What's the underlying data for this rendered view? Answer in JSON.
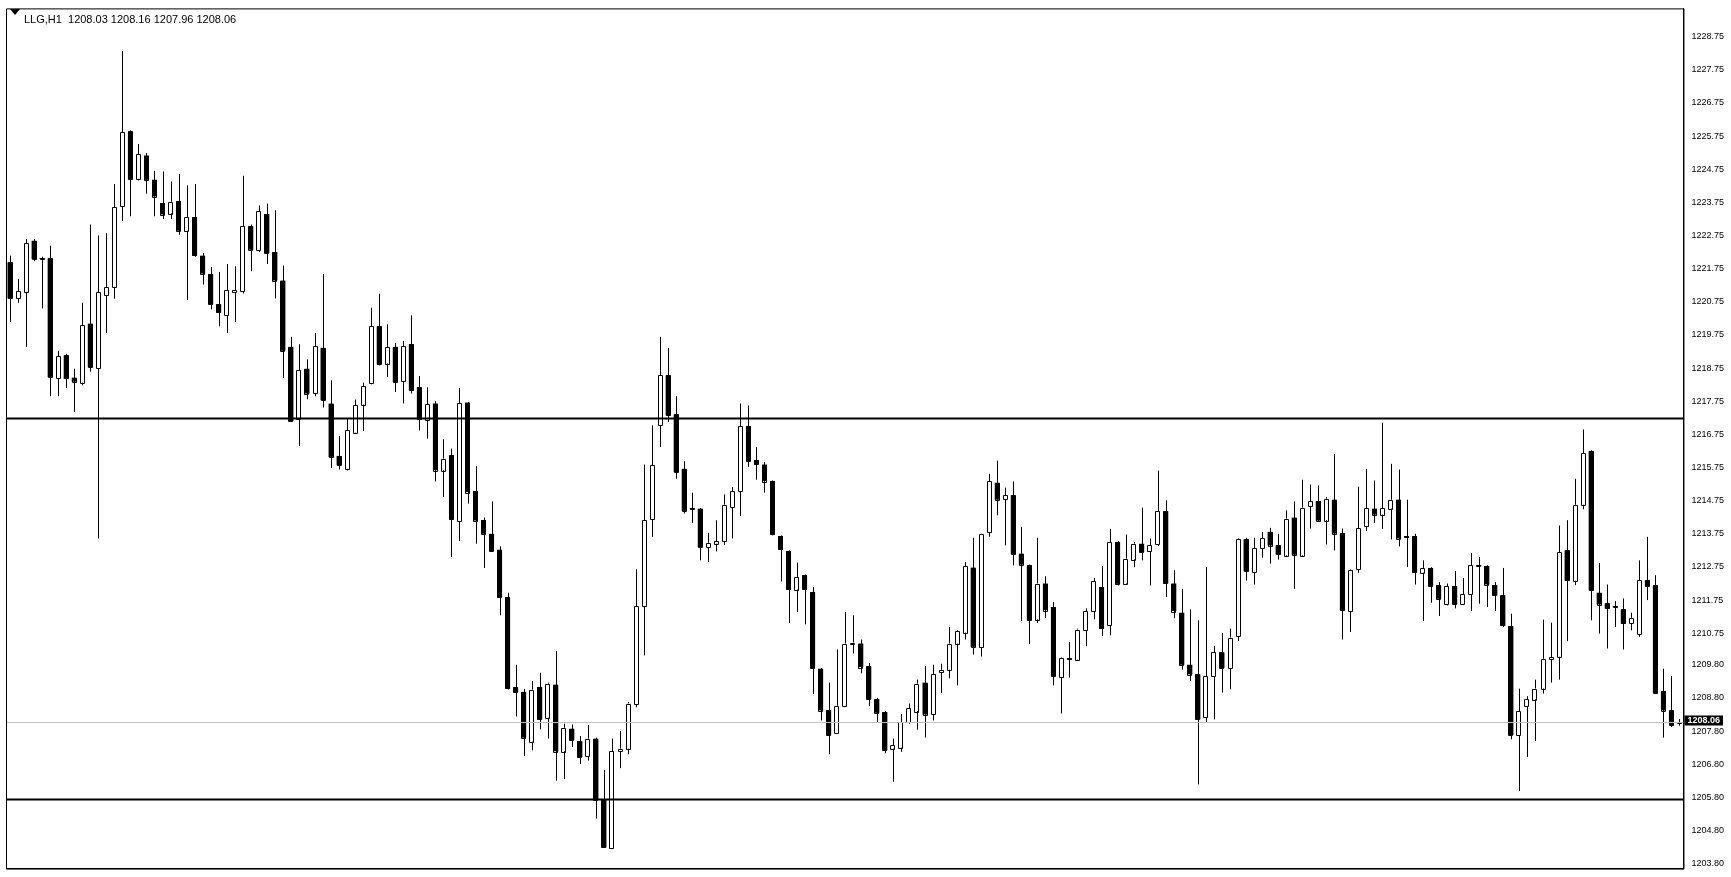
{
  "chart_data": {
    "type": "candlestick",
    "title": "LLG,H1  1208.03 1208.16 1207.96 1208.06",
    "categories": [
      null,
      null,
      null,
      null,
      null,
      null,
      null,
      null,
      null,
      null,
      null,
      null,
      null,
      null,
      null,
      null,
      null,
      null,
      null,
      null,
      null,
      null,
      null,
      null,
      null,
      null,
      null,
      null,
      null,
      null,
      null,
      null,
      null,
      null,
      null,
      null,
      null,
      null,
      null,
      null,
      null,
      null,
      null,
      null,
      null,
      null,
      null,
      null,
      null,
      null,
      null,
      null,
      null,
      null,
      null,
      null,
      null,
      null,
      null,
      null,
      null,
      null,
      null,
      null,
      null,
      null,
      null,
      null,
      null,
      null,
      null,
      null,
      null,
      null,
      null,
      null,
      null,
      null,
      null,
      null,
      null,
      null,
      null,
      null,
      null,
      null,
      null,
      null,
      null,
      null,
      null,
      null,
      null,
      null,
      null,
      null,
      null,
      null,
      null,
      null,
      null,
      null,
      null,
      null,
      null,
      null,
      null,
      null,
      null,
      null,
      null,
      null,
      null,
      null,
      null,
      null,
      null,
      null,
      null,
      null,
      null,
      null,
      null,
      null,
      null,
      null,
      null,
      null,
      null,
      null,
      null,
      null,
      null,
      null,
      null,
      null,
      null,
      null,
      null,
      null,
      null,
      null,
      null,
      null,
      null,
      null,
      null,
      null,
      null,
      null,
      null,
      null,
      null,
      null,
      null,
      null,
      null,
      null,
      null,
      null,
      null,
      null,
      null,
      null,
      null,
      null,
      null,
      null,
      null,
      null,
      null,
      null,
      null,
      null,
      null,
      null,
      null,
      null,
      null,
      null,
      null,
      null,
      null,
      null,
      null,
      null,
      null,
      null,
      null,
      null,
      null,
      null,
      null,
      null,
      null,
      null,
      null,
      null,
      null,
      null,
      null,
      null,
      null,
      null,
      null,
      null,
      null,
      null,
      null
    ],
    "ohlc": [
      [
        1221.94,
        1222.14,
        1220.14,
        1220.85
      ],
      [
        1220.85,
        1221.44,
        1220.72,
        1221.07
      ],
      [
        1221.05,
        1222.64,
        1219.39,
        1222.52
      ],
      [
        1222.59,
        1222.64,
        1221.97,
        1222.04
      ],
      [
        1222.06,
        1222.11,
        1220.55,
        1222.04
      ],
      [
        1222.06,
        1222.44,
        1217.9,
        1218.48
      ],
      [
        1218.45,
        1219.27,
        1217.9,
        1219.11
      ],
      [
        1219.13,
        1219.18,
        1218.15,
        1218.43
      ],
      [
        1218.46,
        1218.73,
        1217.43,
        1218.34
      ],
      [
        1218.31,
        1220.72,
        1218.23,
        1220.05
      ],
      [
        1220.09,
        1223.08,
        1218.64,
        1218.78
      ],
      [
        1218.74,
        1222.75,
        1213.61,
        1221.03
      ],
      [
        1220.95,
        1222.82,
        1219.81,
        1221.2
      ],
      [
        1221.2,
        1224.3,
        1220.84,
        1223.6
      ],
      [
        1223.63,
        1228.31,
        1223.19,
        1225.86
      ],
      [
        1225.89,
        1225.92,
        1223.33,
        1224.44
      ],
      [
        1224.46,
        1225.51,
        1224.41,
        1225.21
      ],
      [
        1225.16,
        1225.24,
        1224.01,
        1224.43
      ],
      [
        1224.43,
        1224.7,
        1223.33,
        1223.93
      ],
      [
        1223.73,
        1224.68,
        1223.25,
        1223.38
      ],
      [
        1223.42,
        1224.38,
        1223.25,
        1223.77
      ],
      [
        1223.78,
        1224.6,
        1222.77,
        1222.89
      ],
      [
        1222.89,
        1224.26,
        1220.8,
        1223.3
      ],
      [
        1223.3,
        1224.3,
        1222.11,
        1222.14
      ],
      [
        1222.14,
        1222.22,
        1221.27,
        1221.6
      ],
      [
        1221.59,
        1221.8,
        1220.52,
        1220.67
      ],
      [
        1220.67,
        1221.65,
        1220.01,
        1220.42
      ],
      [
        1220.35,
        1221.89,
        1219.81,
        1221.1
      ],
      [
        1221.03,
        1221.82,
        1220.14,
        1221.1
      ],
      [
        1221.07,
        1224.55,
        1221.0,
        1223.03
      ],
      [
        1223.03,
        1223.08,
        1221.67,
        1222.32
      ],
      [
        1222.3,
        1223.66,
        1222.25,
        1223.48
      ],
      [
        1223.4,
        1223.71,
        1221.89,
        1222.22
      ],
      [
        1222.25,
        1223.51,
        1220.85,
        1221.39
      ],
      [
        1221.39,
        1221.84,
        1218.45,
        1219.27
      ],
      [
        1219.39,
        1219.69,
        1217.12,
        1217.15
      ],
      [
        1217.2,
        1219.47,
        1216.4,
        1218.69
      ],
      [
        1218.73,
        1219.01,
        1217.81,
        1217.98
      ],
      [
        1217.98,
        1219.81,
        1217.9,
        1219.41
      ],
      [
        1219.36,
        1221.59,
        1217.56,
        1217.78
      ],
      [
        1217.68,
        1218.38,
        1215.74,
        1216.07
      ],
      [
        1216.1,
        1216.7,
        1215.69,
        1215.82
      ],
      [
        1215.71,
        1217.23,
        1215.66,
        1216.88
      ],
      [
        1216.8,
        1217.8,
        1216.78,
        1217.63
      ],
      [
        1217.65,
        1218.31,
        1216.85,
        1218.21
      ],
      [
        1218.28,
        1220.57,
        1218.26,
        1220.01
      ],
      [
        1220.01,
        1220.99,
        1218.83,
        1218.86
      ],
      [
        1218.89,
        1220.07,
        1218.48,
        1219.39
      ],
      [
        1219.39,
        1219.51,
        1218.03,
        1218.33
      ],
      [
        1218.36,
        1219.57,
        1217.68,
        1219.41
      ],
      [
        1219.47,
        1220.34,
        1217.98,
        1218.07
      ],
      [
        1218.17,
        1218.51,
        1216.87,
        1217.2
      ],
      [
        1217.18,
        1218.17,
        1216.62,
        1217.66
      ],
      [
        1217.68,
        1217.75,
        1215.33,
        1215.67
      ],
      [
        1215.67,
        1216.6,
        1214.86,
        1216.02
      ],
      [
        1216.12,
        1216.32,
        1213.05,
        1214.18
      ],
      [
        1214.13,
        1218.15,
        1213.53,
        1217.7
      ],
      [
        1217.71,
        1217.72,
        1214.66,
        1215.01
      ],
      [
        1215.04,
        1215.79,
        1213.45,
        1214.15
      ],
      [
        1214.16,
        1214.24,
        1212.72,
        1213.75
      ],
      [
        1213.75,
        1214.73,
        1213.2,
        1213.23
      ],
      [
        1213.27,
        1213.37,
        1211.29,
        1211.84
      ],
      [
        1211.84,
        1211.97,
        1209.05,
        1209.08
      ],
      [
        1209.12,
        1209.8,
        1208.24,
        1208.98
      ],
      [
        1208.98,
        1209.07,
        1207.05,
        1207.6
      ],
      [
        1207.48,
        1209.31,
        1207.22,
        1209.05
      ],
      [
        1209.13,
        1209.56,
        1207.85,
        1208.15
      ],
      [
        1208.2,
        1209.26,
        1207.57,
        1209.23
      ],
      [
        1209.2,
        1210.21,
        1206.3,
        1207.19
      ],
      [
        1207.19,
        1208.02,
        1206.35,
        1207.9
      ],
      [
        1207.87,
        1208.0,
        1207.32,
        1207.53
      ],
      [
        1207.5,
        1207.65,
        1206.81,
        1207.01
      ],
      [
        1207.05,
        1207.98,
        1206.91,
        1207.57
      ],
      [
        1207.57,
        1207.6,
        1205.16,
        1205.74
      ],
      [
        1205.74,
        1206.62,
        1204.27,
        1204.29
      ],
      [
        1204.26,
        1207.57,
        1204.24,
        1207.19
      ],
      [
        1207.2,
        1207.8,
        1206.68,
        1207.27
      ],
      [
        1207.27,
        1208.68,
        1207.1,
        1208.63
      ],
      [
        1208.6,
        1212.68,
        1208.52,
        1211.57
      ],
      [
        1211.57,
        1215.84,
        1210.08,
        1214.16
      ],
      [
        1214.19,
        1217.02,
        1213.66,
        1215.82
      ],
      [
        1217.02,
        1219.69,
        1216.37,
        1218.53
      ],
      [
        1218.53,
        1219.36,
        1217.12,
        1217.32
      ],
      [
        1217.35,
        1217.9,
        1215.41,
        1215.61
      ],
      [
        1215.71,
        1215.94,
        1214.36,
        1214.44
      ],
      [
        1214.5,
        1214.99,
        1214.08,
        1214.49
      ],
      [
        1214.51,
        1214.53,
        1212.95,
        1213.35
      ],
      [
        1213.35,
        1213.78,
        1212.9,
        1213.48
      ],
      [
        1213.45,
        1214.16,
        1213.22,
        1213.53
      ],
      [
        1213.53,
        1214.94,
        1213.41,
        1214.63
      ],
      [
        1214.55,
        1215.16,
        1213.61,
        1215.04
      ],
      [
        1215.04,
        1217.68,
        1214.29,
        1217.0
      ],
      [
        1217.0,
        1217.62,
        1215.77,
        1215.94
      ],
      [
        1215.97,
        1216.37,
        1215.38,
        1215.84
      ],
      [
        1215.84,
        1215.91,
        1214.99,
        1215.34
      ],
      [
        1215.34,
        1215.36,
        1213.7,
        1213.73
      ],
      [
        1213.68,
        1213.7,
        1212.31,
        1213.28
      ],
      [
        1213.23,
        1213.25,
        1211.06,
        1212.07
      ],
      [
        1212.07,
        1212.88,
        1211.39,
        1212.45
      ],
      [
        1212.5,
        1212.52,
        1211.02,
        1212.07
      ],
      [
        1211.99,
        1212.14,
        1208.92,
        1209.7
      ],
      [
        1209.68,
        1209.7,
        1208.12,
        1208.42
      ],
      [
        1208.43,
        1209.26,
        1207.1,
        1207.67
      ],
      [
        1207.74,
        1210.26,
        1207.72,
        1208.56
      ],
      [
        1208.56,
        1211.39,
        1208.54,
        1210.44
      ],
      [
        1210.44,
        1211.29,
        1210.14,
        1210.46
      ],
      [
        1210.44,
        1210.56,
        1209.54,
        1209.73
      ],
      [
        1209.75,
        1209.85,
        1208.55,
        1208.76
      ],
      [
        1208.76,
        1208.8,
        1208.05,
        1208.35
      ],
      [
        1208.37,
        1208.4,
        1207.13,
        1207.22
      ],
      [
        1207.27,
        1207.57,
        1206.27,
        1207.38
      ],
      [
        1207.3,
        1208.31,
        1207.17,
        1208.07
      ],
      [
        1208.05,
        1208.63,
        1208.02,
        1208.48
      ],
      [
        1208.4,
        1209.35,
        1207.84,
        1209.23
      ],
      [
        1209.26,
        1209.76,
        1207.6,
        1208.3
      ],
      [
        1208.3,
        1209.8,
        1208.12,
        1209.51
      ],
      [
        1209.58,
        1209.83,
        1208.95,
        1209.65
      ],
      [
        1209.65,
        1210.94,
        1209.39,
        1210.44
      ],
      [
        1210.44,
        1210.84,
        1209.18,
        1210.82
      ],
      [
        1210.77,
        1212.9,
        1210.56,
        1212.78
      ],
      [
        1212.73,
        1213.63,
        1210.11,
        1210.34
      ],
      [
        1210.33,
        1213.75,
        1210.05,
        1213.73
      ],
      [
        1213.8,
        1215.56,
        1213.66,
        1215.33
      ],
      [
        1215.29,
        1215.96,
        1214.31,
        1214.78
      ],
      [
        1214.79,
        1215.14,
        1213.4,
        1214.91
      ],
      [
        1214.91,
        1215.33,
        1212.8,
        1213.13
      ],
      [
        1213.15,
        1213.96,
        1211.12,
        1212.82
      ],
      [
        1212.8,
        1212.82,
        1210.42,
        1211.14
      ],
      [
        1211.17,
        1213.63,
        1211.06,
        1212.25
      ],
      [
        1212.25,
        1212.47,
        1211.21,
        1211.45
      ],
      [
        1211.54,
        1211.69,
        1209.18,
        1209.45
      ],
      [
        1209.43,
        1210.02,
        1208.33,
        1210.0
      ],
      [
        1209.97,
        1210.49,
        1209.41,
        1209.96
      ],
      [
        1209.95,
        1210.89,
        1209.91,
        1210.86
      ],
      [
        1210.84,
        1211.5,
        1210.36,
        1211.42
      ],
      [
        1211.42,
        1212.42,
        1211.17,
        1212.32
      ],
      [
        1212.14,
        1212.78,
        1210.67,
        1210.89
      ],
      [
        1210.99,
        1213.9,
        1210.69,
        1213.5
      ],
      [
        1213.5,
        1213.53,
        1212.19,
        1212.24
      ],
      [
        1212.25,
        1213.73,
        1212.23,
        1213.0
      ],
      [
        1212.98,
        1213.5,
        1212.75,
        1213.45
      ],
      [
        1213.45,
        1214.54,
        1212.95,
        1213.2
      ],
      [
        1213.22,
        1213.61,
        1212.19,
        1213.4
      ],
      [
        1213.42,
        1215.66,
        1213.38,
        1214.43
      ],
      [
        1214.43,
        1214.76,
        1211.84,
        1212.25
      ],
      [
        1212.25,
        1212.65,
        1211.2,
        1211.42
      ],
      [
        1211.37,
        1212.09,
        1209.65,
        1209.8
      ],
      [
        1209.8,
        1211.47,
        1209.31,
        1209.51
      ],
      [
        1209.51,
        1211.14,
        1206.19,
        1208.15
      ],
      [
        1208.22,
        1212.75,
        1208.07,
        1209.46
      ],
      [
        1209.46,
        1210.37,
        1208.15,
        1210.17
      ],
      [
        1210.17,
        1210.76,
        1208.96,
        1209.7
      ],
      [
        1209.7,
        1210.89,
        1209.06,
        1210.62
      ],
      [
        1210.64,
        1213.61,
        1210.52,
        1213.58
      ],
      [
        1213.58,
        1213.63,
        1212.34,
        1212.62
      ],
      [
        1212.6,
        1213.63,
        1212.22,
        1213.31
      ],
      [
        1213.31,
        1213.8,
        1213.03,
        1213.61
      ],
      [
        1213.81,
        1213.93,
        1212.85,
        1213.4
      ],
      [
        1213.4,
        1213.75,
        1212.97,
        1213.13
      ],
      [
        1213.1,
        1214.46,
        1213.05,
        1214.21
      ],
      [
        1214.24,
        1214.73,
        1212.09,
        1213.12
      ],
      [
        1213.1,
        1215.38,
        1213.05,
        1214.54
      ],
      [
        1214.58,
        1215.24,
        1213.91,
        1214.74
      ],
      [
        1214.74,
        1215.21,
        1214.11,
        1214.15
      ],
      [
        1214.16,
        1214.86,
        1213.43,
        1214.81
      ],
      [
        1214.78,
        1216.16,
        1213.25,
        1213.76
      ],
      [
        1213.76,
        1213.91,
        1210.56,
        1211.44
      ],
      [
        1211.42,
        1212.68,
        1210.79,
        1212.67
      ],
      [
        1212.67,
        1215.17,
        1212.57,
        1213.91
      ],
      [
        1213.98,
        1215.71,
        1213.83,
        1214.53
      ],
      [
        1214.51,
        1215.36,
        1214.08,
        1214.33
      ],
      [
        1214.33,
        1217.1,
        1213.9,
        1214.53
      ],
      [
        1214.51,
        1215.86,
        1213.58,
        1214.78
      ],
      [
        1214.78,
        1215.69,
        1213.37,
        1213.61
      ],
      [
        1213.66,
        1214.78,
        1212.75,
        1213.64
      ],
      [
        1213.68,
        1213.75,
        1212.22,
        1212.58
      ],
      [
        1212.58,
        1212.95,
        1211.12,
        1212.72
      ],
      [
        1212.72,
        1212.74,
        1211.67,
        1212.17
      ],
      [
        1212.2,
        1212.29,
        1211.27,
        1211.79
      ],
      [
        1211.62,
        1212.25,
        1211.59,
        1212.17
      ],
      [
        1212.17,
        1212.63,
        1211.5,
        1211.62
      ],
      [
        1211.62,
        1212.42,
        1211.6,
        1211.92
      ],
      [
        1211.92,
        1213.17,
        1211.42,
        1212.8
      ],
      [
        1212.8,
        1213.05,
        1211.64,
        1212.78
      ],
      [
        1212.78,
        1212.8,
        1211.54,
        1212.22
      ],
      [
        1212.2,
        1212.29,
        1211.42,
        1211.89
      ],
      [
        1211.89,
        1212.72,
        1210.94,
        1210.97
      ],
      [
        1210.96,
        1211.34,
        1207.55,
        1207.68
      ],
      [
        1207.68,
        1209.08,
        1205.99,
        1208.4
      ],
      [
        1208.55,
        1208.85,
        1207.02,
        1208.76
      ],
      [
        1208.76,
        1209.35,
        1207.5,
        1209.08
      ],
      [
        1209.08,
        1211.16,
        1208.93,
        1209.98
      ],
      [
        1209.96,
        1211.07,
        1209.26,
        1210.03
      ],
      [
        1210.04,
        1214.0,
        1209.35,
        1213.2
      ],
      [
        1213.25,
        1214.16,
        1210.51,
        1212.33
      ],
      [
        1212.33,
        1215.41,
        1212.2,
        1214.63
      ],
      [
        1214.63,
        1216.9,
        1214.49,
        1216.19
      ],
      [
        1216.25,
        1216.27,
        1211.14,
        1212.05
      ],
      [
        1211.97,
        1212.87,
        1210.74,
        1211.62
      ],
      [
        1211.65,
        1212.22,
        1210.29,
        1211.5
      ],
      [
        1211.55,
        1211.72,
        1210.94,
        1211.54
      ],
      [
        1211.47,
        1211.8,
        1210.26,
        1211.04
      ],
      [
        1211.06,
        1211.37,
        1210.84,
        1211.22
      ],
      [
        1210.71,
        1212.95,
        1210.64,
        1212.35
      ],
      [
        1212.35,
        1213.66,
        1211.75,
        1212.17
      ],
      [
        1212.2,
        1212.5,
        1208.93,
        1208.95
      ],
      [
        1209.01,
        1209.68,
        1207.6,
        1208.42
      ],
      [
        1208.42,
        1209.46,
        1207.92,
        1207.98
      ],
      [
        1208.03,
        1208.16,
        1207.96,
        1208.06
      ]
    ],
    "ylim": [
      1203.65,
      1229.6
    ],
    "yticks": [
      1228.75,
      1227.75,
      1226.75,
      1225.75,
      1224.75,
      1223.75,
      1222.75,
      1221.75,
      1220.75,
      1219.75,
      1218.75,
      1217.75,
      1216.75,
      1215.75,
      1214.75,
      1213.75,
      1212.75,
      1211.75,
      1210.75,
      {
        "value": 1209.8,
        "label": "1209.80"
      },
      {
        "value": 1208.8,
        "label": "1208.80"
      },
      {
        "value": 1207.8,
        "label": "1207.80"
      },
      {
        "value": 1206.8,
        "label": "1206.80"
      },
      {
        "value": 1205.8,
        "label": "1205.80"
      },
      {
        "value": 1204.8,
        "label": "1204.80"
      },
      {
        "value": 1203.8,
        "label": "1203.80"
      }
    ],
    "ref_lines": [
      {
        "axis": "y",
        "value": 1217.23,
        "color": "#000000"
      },
      {
        "axis": "y",
        "value": 1205.74,
        "color": "#000000"
      },
      {
        "axis": "y",
        "value": 1208.06,
        "label": "1208.06",
        "color": "#c0c0c0"
      }
    ],
    "tick_labels": "y",
    "legend": false
  }
}
